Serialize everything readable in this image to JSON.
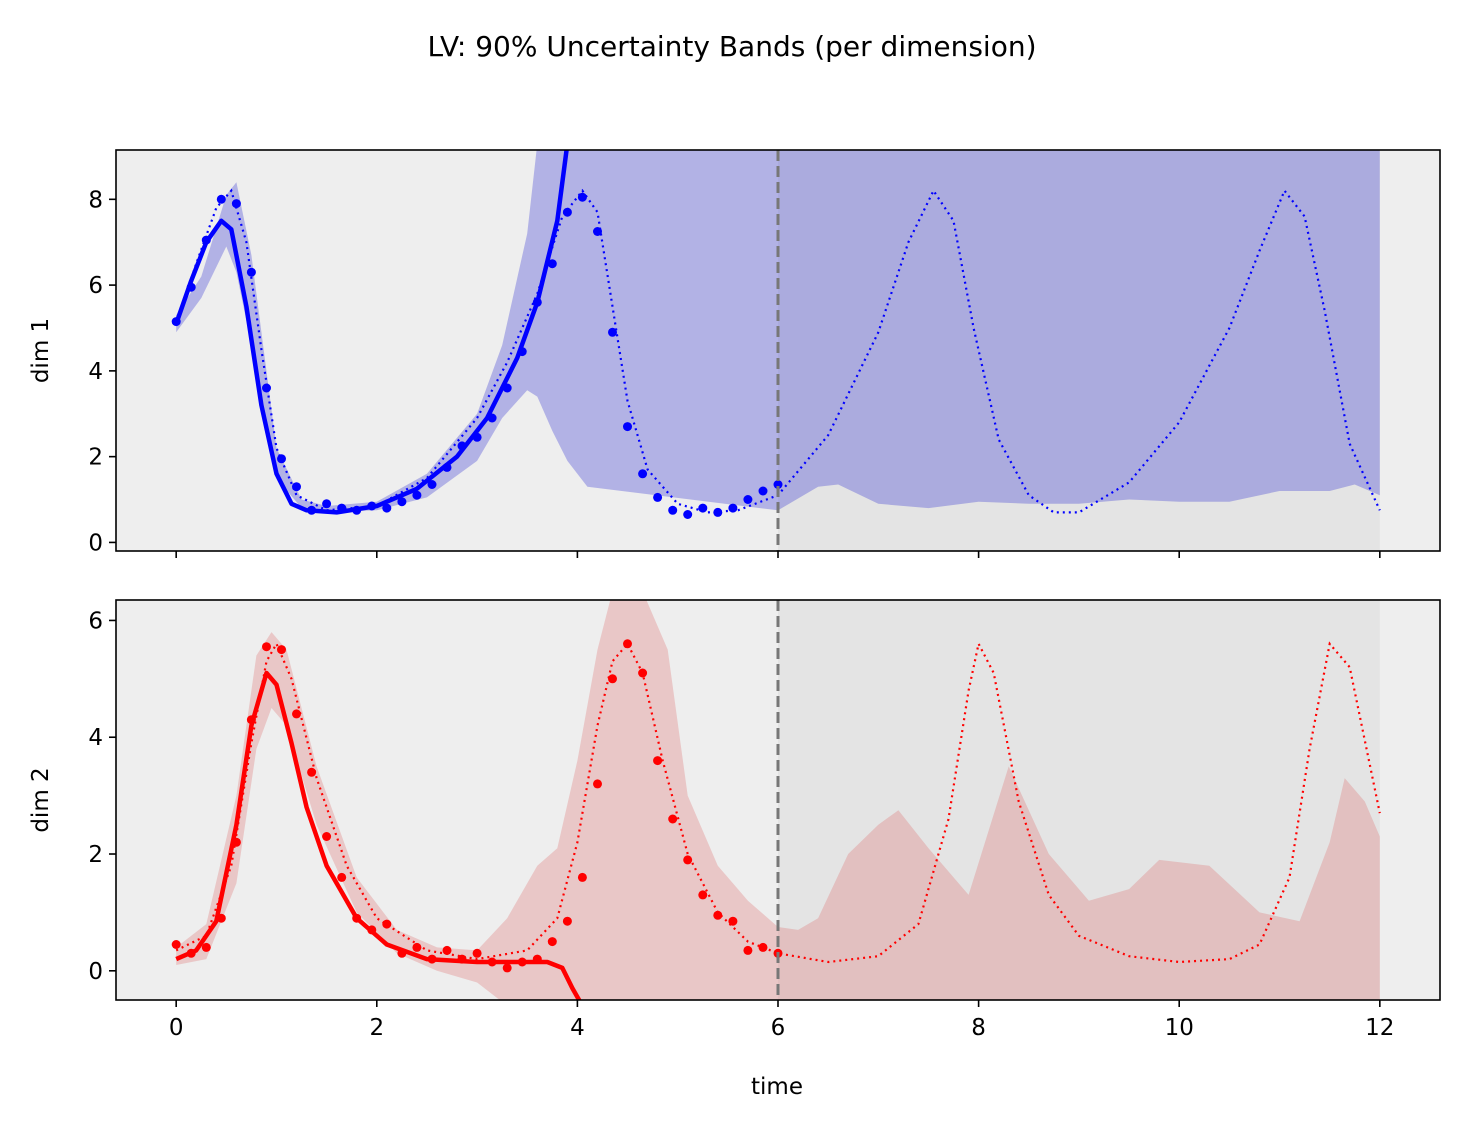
{
  "chart_data": {
    "title": "LV: 90% Uncertainty Bands (per dimension)",
    "type": "line",
    "xlabel": "time",
    "xlim": [
      -0.6,
      12.6
    ],
    "xticks": [
      0,
      2,
      4,
      6,
      8,
      10,
      12
    ],
    "train_end": 6,
    "panels": [
      {
        "ylabel": "dim 1",
        "ylim": [
          -0.2,
          9.15
        ],
        "yticks": [
          0,
          2,
          4,
          6,
          8
        ],
        "color": "#0000ff",
        "band_color": "#0000cc",
        "band": {
          "x": [
            0,
            0.25,
            0.5,
            0.6,
            0.75,
            1.0,
            1.25,
            1.5,
            2.0,
            2.5,
            3.0,
            3.25,
            3.5,
            3.6,
            3.75,
            3.9,
            4.1,
            6.0,
            6.4,
            6.6,
            7.0,
            7.5,
            8.0,
            8.5,
            9.0,
            9.5,
            10.0,
            10.5,
            11.0,
            11.5,
            11.75,
            12.0
          ],
          "upper": [
            5.3,
            6.2,
            8.1,
            8.4,
            6.7,
            2.2,
            1.0,
            0.85,
            0.95,
            1.6,
            3.0,
            4.6,
            7.2,
            9.3,
            9.3,
            9.3,
            9.3,
            9.3,
            9.3,
            9.3,
            9.3,
            9.3,
            9.3,
            9.3,
            9.3,
            9.3,
            9.3,
            9.3,
            9.3,
            9.3,
            9.3,
            9.3
          ],
          "lower": [
            4.9,
            5.7,
            6.9,
            6.3,
            4.6,
            1.5,
            0.8,
            0.7,
            0.75,
            1.05,
            1.9,
            2.9,
            3.55,
            3.4,
            2.6,
            1.9,
            1.3,
            0.75,
            1.3,
            1.35,
            0.9,
            0.8,
            0.95,
            0.9,
            0.9,
            1.0,
            0.95,
            0.95,
            1.2,
            1.2,
            1.35,
            1.1
          ]
        },
        "mean": {
          "x": [
            0,
            0.15,
            0.3,
            0.45,
            0.55,
            0.7,
            0.85,
            1.0,
            1.15,
            1.3,
            1.6,
            2.0,
            2.4,
            2.8,
            3.1,
            3.4,
            3.6,
            3.8,
            3.9
          ],
          "y": [
            5.1,
            6.1,
            7.0,
            7.5,
            7.3,
            5.5,
            3.2,
            1.6,
            0.9,
            0.75,
            0.7,
            0.85,
            1.25,
            2.0,
            2.9,
            4.3,
            5.6,
            7.5,
            9.3
          ]
        },
        "truth": {
          "x": [
            0,
            0.2,
            0.4,
            0.55,
            0.7,
            0.85,
            1.0,
            1.2,
            1.5,
            2.0,
            2.5,
            3.0,
            3.3,
            3.6,
            3.85,
            4.05,
            4.2,
            4.35,
            4.5,
            4.7,
            5.0,
            5.3,
            5.6,
            6.0,
            6.5,
            7.0,
            7.3,
            7.55,
            7.75,
            7.95,
            8.2,
            8.5,
            8.75,
            9.0,
            9.5,
            10.0,
            10.5,
            10.8,
            11.05,
            11.25,
            11.45,
            11.7,
            12.0
          ],
          "y": [
            5.1,
            6.5,
            7.8,
            8.2,
            7.0,
            4.5,
            2.2,
            1.1,
            0.75,
            0.85,
            1.5,
            2.9,
            4.2,
            5.8,
            7.6,
            8.2,
            7.7,
            5.5,
            3.3,
            1.7,
            0.9,
            0.7,
            0.75,
            1.1,
            2.5,
            4.9,
            7.0,
            8.2,
            7.5,
            5.0,
            2.4,
            1.1,
            0.7,
            0.7,
            1.4,
            2.8,
            5.0,
            6.8,
            8.2,
            7.6,
            5.4,
            2.3,
            0.75
          ]
        },
        "observations": {
          "x": [
            0.0,
            0.15,
            0.3,
            0.45,
            0.6,
            0.75,
            0.9,
            1.05,
            1.2,
            1.35,
            1.5,
            1.65,
            1.8,
            1.95,
            2.1,
            2.25,
            2.4,
            2.55,
            2.7,
            2.85,
            3.0,
            3.15,
            3.3,
            3.45,
            3.6,
            3.75,
            3.9,
            4.05,
            4.2,
            4.35,
            4.5,
            4.65,
            4.8,
            4.95,
            5.1,
            5.25,
            5.4,
            5.55,
            5.7,
            5.85,
            6.0
          ],
          "y": [
            5.15,
            5.95,
            7.05,
            8.0,
            7.9,
            6.3,
            3.6,
            1.95,
            1.3,
            0.75,
            0.9,
            0.8,
            0.75,
            0.85,
            0.8,
            0.95,
            1.1,
            1.35,
            1.75,
            2.25,
            2.45,
            2.9,
            3.6,
            4.45,
            5.6,
            6.5,
            7.7,
            8.05,
            7.25,
            4.9,
            2.7,
            1.6,
            1.05,
            0.75,
            0.65,
            0.8,
            0.7,
            0.8,
            1.0,
            1.2,
            1.35
          ]
        }
      },
      {
        "ylabel": "dim 2",
        "ylim": [
          -0.5,
          6.35
        ],
        "yticks": [
          0,
          2,
          4,
          6
        ],
        "color": "#ff0000",
        "band_color": "#dd5555",
        "band": {
          "x": [
            0,
            0.3,
            0.6,
            0.8,
            0.95,
            1.1,
            1.4,
            1.8,
            2.2,
            2.6,
            3.0,
            3.3,
            3.6,
            3.8,
            4.0,
            4.2,
            4.35,
            4.5,
            4.65,
            4.9,
            5.1,
            5.4,
            5.7,
            6.0,
            6.2,
            6.4,
            6.7,
            7.0,
            7.2,
            7.5,
            7.9,
            8.3,
            8.7,
            9.1,
            9.5,
            9.8,
            10.3,
            10.8,
            11.2,
            11.5,
            11.65,
            11.85,
            12.0
          ],
          "upper": [
            0.4,
            0.8,
            3.0,
            5.4,
            5.8,
            5.5,
            3.5,
            1.6,
            0.7,
            0.4,
            0.35,
            0.9,
            1.8,
            2.1,
            3.6,
            5.5,
            6.5,
            6.5,
            6.5,
            5.5,
            3.0,
            1.8,
            1.2,
            0.75,
            0.7,
            0.9,
            2.0,
            2.5,
            2.75,
            2.1,
            1.3,
            3.5,
            2.0,
            1.2,
            1.4,
            1.9,
            1.8,
            1.0,
            0.85,
            2.2,
            3.3,
            2.9,
            2.3
          ],
          "lower": [
            0.1,
            0.2,
            1.5,
            3.8,
            4.5,
            4.2,
            2.5,
            1.0,
            0.3,
            0.0,
            -0.2,
            -0.6,
            -0.6,
            -0.6,
            -0.6,
            -0.6,
            -0.6,
            -0.6,
            -0.6,
            -0.6,
            -0.6,
            -0.6,
            -0.6,
            -0.6,
            -0.6,
            -0.6,
            -0.6,
            -0.6,
            -0.6,
            -0.6,
            -0.6,
            -0.6,
            -0.6,
            -0.6,
            -0.6,
            -0.6,
            -0.6,
            -0.6,
            -0.6,
            -0.6,
            -0.6,
            -0.6,
            -0.6
          ]
        },
        "mean": {
          "x": [
            0,
            0.2,
            0.4,
            0.6,
            0.75,
            0.9,
            1.0,
            1.15,
            1.3,
            1.5,
            1.8,
            2.1,
            2.5,
            3.0,
            3.4,
            3.7,
            3.85,
            3.95,
            4.05
          ],
          "y": [
            0.2,
            0.35,
            0.85,
            2.5,
            4.2,
            5.1,
            4.9,
            3.9,
            2.8,
            1.8,
            0.9,
            0.45,
            0.2,
            0.15,
            0.15,
            0.15,
            0.05,
            -0.3,
            -0.6
          ]
        },
        "truth": {
          "x": [
            0,
            0.3,
            0.55,
            0.75,
            0.9,
            1.0,
            1.15,
            1.4,
            1.7,
            2.0,
            2.5,
            3.0,
            3.5,
            3.8,
            4.0,
            4.2,
            4.35,
            4.5,
            4.65,
            4.85,
            5.1,
            5.4,
            5.7,
            6.0,
            6.5,
            7.0,
            7.4,
            7.7,
            7.9,
            8.0,
            8.15,
            8.4,
            8.7,
            9.0,
            9.5,
            10.0,
            10.5,
            10.8,
            11.1,
            11.3,
            11.5,
            11.7,
            12.0
          ],
          "y": [
            0.35,
            0.6,
            1.8,
            3.9,
            5.3,
            5.6,
            5.0,
            3.3,
            1.8,
            0.9,
            0.35,
            0.2,
            0.35,
            0.9,
            2.2,
            4.2,
            5.3,
            5.6,
            5.1,
            3.6,
            2.0,
            1.0,
            0.5,
            0.3,
            0.15,
            0.25,
            0.8,
            2.6,
            4.8,
            5.6,
            5.1,
            2.9,
            1.3,
            0.6,
            0.25,
            0.15,
            0.2,
            0.45,
            1.6,
            3.8,
            5.6,
            5.2,
            2.7
          ]
        },
        "observations": {
          "x": [
            0.0,
            0.15,
            0.3,
            0.45,
            0.6,
            0.75,
            0.9,
            1.05,
            1.2,
            1.35,
            1.5,
            1.65,
            1.8,
            1.95,
            2.1,
            2.25,
            2.4,
            2.55,
            2.7,
            2.85,
            3.0,
            3.15,
            3.3,
            3.45,
            3.6,
            3.75,
            3.9,
            4.05,
            4.2,
            4.35,
            4.5,
            4.65,
            4.8,
            4.95,
            5.1,
            5.25,
            5.4,
            5.55,
            5.7,
            5.85,
            6.0
          ],
          "y": [
            0.45,
            0.3,
            0.4,
            0.9,
            2.2,
            4.3,
            5.55,
            5.5,
            4.4,
            3.4,
            2.3,
            1.6,
            0.9,
            0.7,
            0.8,
            0.3,
            0.4,
            0.2,
            0.35,
            0.2,
            0.3,
            0.15,
            0.05,
            0.15,
            0.2,
            0.5,
            0.85,
            1.6,
            3.2,
            5.0,
            5.6,
            5.1,
            3.6,
            2.6,
            1.9,
            1.3,
            0.95,
            0.85,
            0.35,
            0.4,
            0.3
          ]
        }
      }
    ]
  }
}
